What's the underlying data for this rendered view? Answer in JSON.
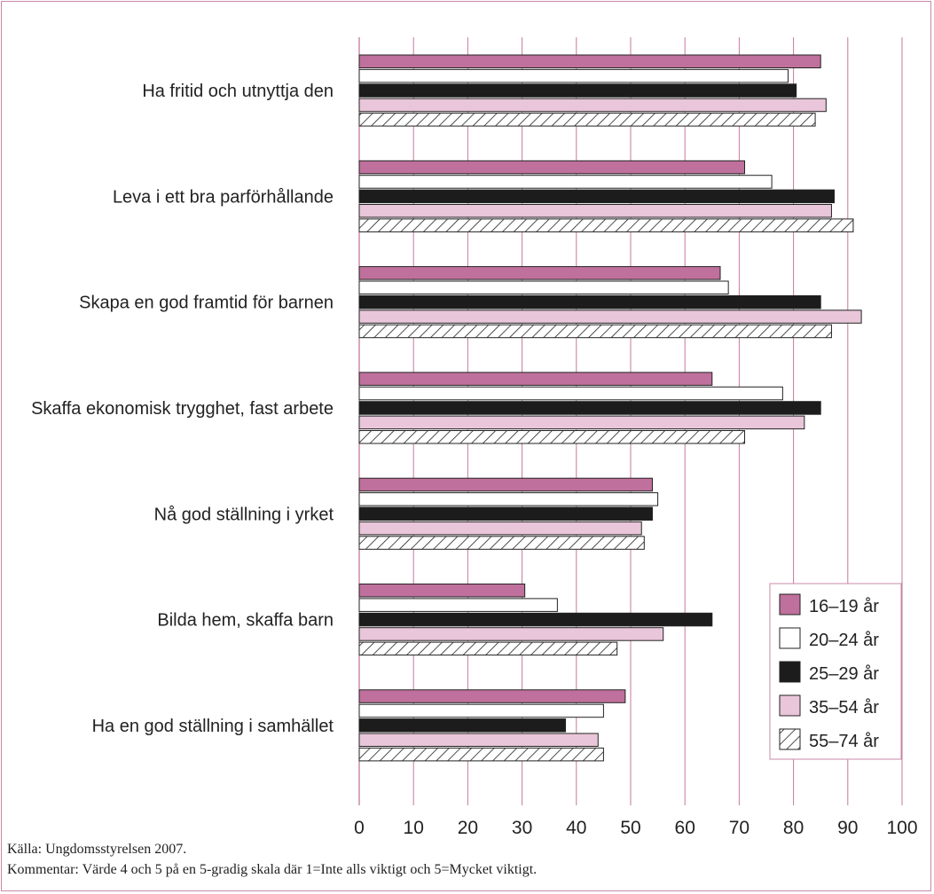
{
  "colors": {
    "frame": "#c98aa8",
    "grid": "#c47a9e",
    "s1619": "#c0709c",
    "s2024": "#ffffff",
    "s2529": "#1c1c1c",
    "s3554": "#e9c6d9",
    "s5574": "hatch"
  },
  "chart_data": {
    "type": "bar",
    "orientation": "horizontal",
    "categories": [
      "Ha fritid och utnyttja den",
      "Leva i ett bra parförhållande",
      "Skapa en god framtid för barnen",
      "Skaffa ekonomisk trygghet, fast arbete",
      "Nå god ställning i yrket",
      "Bilda hem, skaffa barn",
      "Ha en god ställning i samhället"
    ],
    "series": [
      {
        "name": "16–19 år",
        "values": [
          85,
          71,
          66.5,
          65,
          54,
          30.5,
          49
        ]
      },
      {
        "name": "20–24 år",
        "values": [
          79,
          76,
          68,
          78,
          55,
          36.5,
          45
        ]
      },
      {
        "name": "25–29 år",
        "values": [
          80.5,
          87.5,
          85,
          85,
          54,
          65,
          38
        ]
      },
      {
        "name": "35–54 år",
        "values": [
          86,
          87,
          92.5,
          82,
          52,
          56,
          44
        ]
      },
      {
        "name": "55–74 år",
        "values": [
          84,
          91,
          87,
          71,
          52.5,
          47.5,
          45
        ]
      }
    ],
    "xlim": [
      0,
      100
    ],
    "xticks": [
      "0",
      "10",
      "20",
      "30",
      "40",
      "50",
      "60",
      "70",
      "80",
      "90",
      "100"
    ],
    "grid": "vertical",
    "legend": "bottom-right"
  },
  "notes": {
    "source": "Källa: Ungdomsstyrelsen 2007.",
    "comment": "Kommentar: Värde 4 och 5 på en 5-gradig skala där 1=Inte alls viktigt och 5=Mycket viktigt."
  }
}
